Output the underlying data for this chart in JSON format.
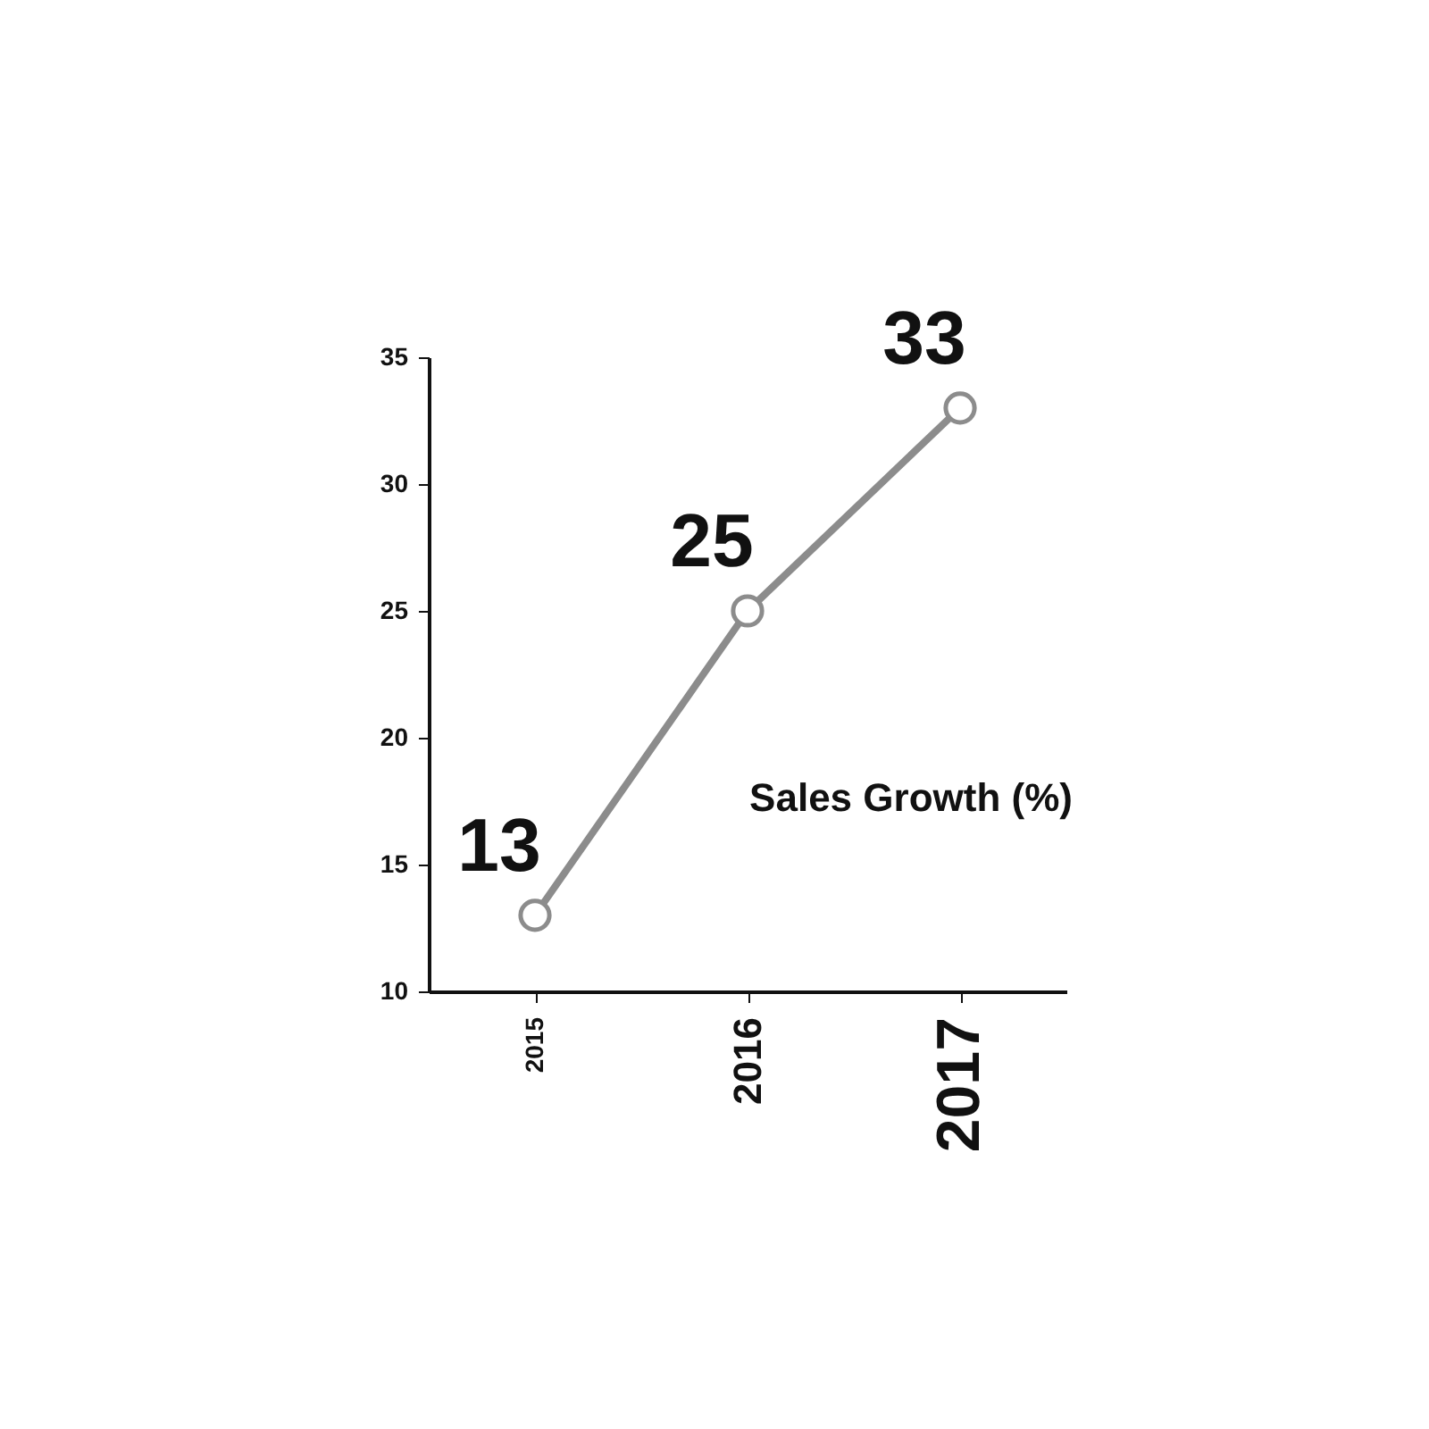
{
  "chart_data": {
    "type": "line",
    "categories": [
      "2015",
      "2016",
      "2017"
    ],
    "series": [
      {
        "color": "#8c8c8c",
        "values": [
          13,
          25,
          33
        ]
      }
    ],
    "ylim": [
      10,
      35
    ],
    "yticks": [
      10,
      15,
      20,
      25,
      30,
      35
    ],
    "grid": false,
    "marker": "circle",
    "line_style": "solid",
    "data_labels": true,
    "annotations": [
      "Sales Growth (%)"
    ]
  }
}
